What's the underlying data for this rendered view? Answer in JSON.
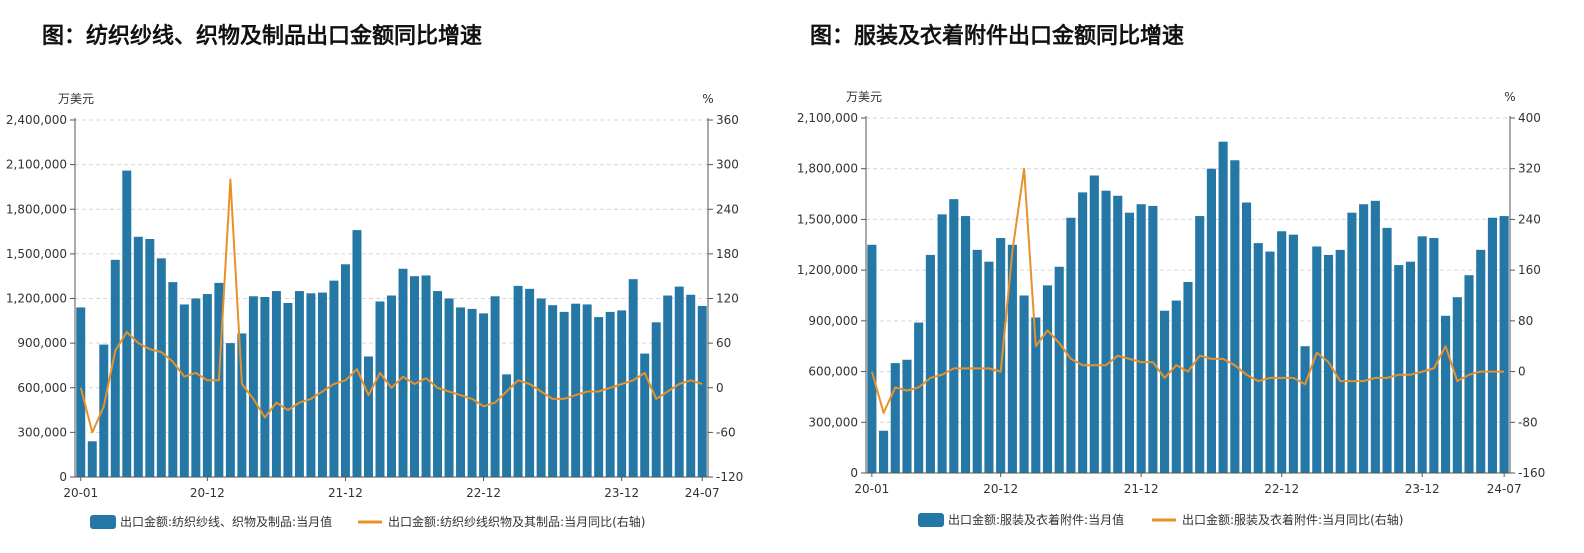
{
  "chart_data": [
    {
      "type": "bar",
      "title": "图：纺织纱线、织物及制品出口金额同比增速",
      "y_unit_left": "万美元",
      "y_unit_right": "%",
      "ylim_left": [
        0,
        2400000
      ],
      "ylim_right": [
        -120,
        360
      ],
      "yticks_left": [
        "0",
        "300,000",
        "600,000",
        "900,000",
        "1,200,000",
        "1,500,000",
        "1,800,000",
        "2,100,000",
        "2,400,000"
      ],
      "yticks_right": [
        "-120",
        "-60",
        "0",
        "60",
        "120",
        "180",
        "240",
        "300",
        "360"
      ],
      "xtick_labels": [
        "20-01",
        "20-12",
        "21-12",
        "22-12",
        "23-12",
        "24-07"
      ],
      "grid": "horizontal-dashed",
      "legend_position": "bottom",
      "categories": [
        "20-01",
        "20-02",
        "20-03",
        "20-04",
        "20-05",
        "20-06",
        "20-07",
        "20-08",
        "20-09",
        "20-10",
        "20-11",
        "20-12",
        "21-01",
        "21-02",
        "21-03",
        "21-04",
        "21-05",
        "21-06",
        "21-07",
        "21-08",
        "21-09",
        "21-10",
        "21-11",
        "21-12",
        "22-01",
        "22-02",
        "22-03",
        "22-04",
        "22-05",
        "22-06",
        "22-07",
        "22-08",
        "22-09",
        "22-10",
        "22-11",
        "22-12",
        "23-01",
        "23-02",
        "23-03",
        "23-04",
        "23-05",
        "23-06",
        "23-07",
        "23-08",
        "23-09",
        "23-10",
        "23-11",
        "23-12",
        "24-01",
        "24-02",
        "24-03",
        "24-04",
        "24-05",
        "24-06",
        "24-07"
      ],
      "series": [
        {
          "name": "出口金额:纺织纱线、织物及制品:当月值",
          "axis": "left",
          "kind": "bar",
          "color": "#2578a5",
          "values": [
            1140000,
            240000,
            890000,
            1460000,
            2060000,
            1615000,
            1600000,
            1470000,
            1310000,
            1160000,
            1200000,
            1230000,
            1305000,
            900000,
            965000,
            1215000,
            1210000,
            1250000,
            1170000,
            1250000,
            1235000,
            1240000,
            1320000,
            1430000,
            1660000,
            810000,
            1180000,
            1220000,
            1400000,
            1350000,
            1355000,
            1250000,
            1200000,
            1140000,
            1130000,
            1100000,
            1215000,
            690000,
            1285000,
            1265000,
            1200000,
            1155000,
            1110000,
            1165000,
            1160000,
            1075000,
            1110000,
            1120000,
            1330000,
            830000,
            1040000,
            1220000,
            1280000,
            1225000,
            1150000
          ]
        },
        {
          "name": "出口金额:纺织纱线织物及其制品:当月同比(右轴)",
          "axis": "right",
          "kind": "line",
          "color": "#e8902a",
          "values": [
            0,
            -60,
            -25,
            50,
            75,
            60,
            52,
            48,
            35,
            15,
            20,
            10,
            10,
            280,
            5,
            -15,
            -40,
            -20,
            -30,
            -20,
            -15,
            -5,
            5,
            10,
            25,
            -10,
            20,
            0,
            15,
            5,
            13,
            0,
            -5,
            -10,
            -15,
            -25,
            -20,
            -5,
            10,
            5,
            -5,
            -15,
            -15,
            -10,
            -5,
            -5,
            0,
            5,
            10,
            20,
            -15,
            -5,
            5,
            10,
            5
          ]
        }
      ]
    },
    {
      "type": "bar",
      "title": "图：服装及衣着附件出口金额同比增速",
      "y_unit_left": "万美元",
      "y_unit_right": "%",
      "ylim_left": [
        0,
        2100000
      ],
      "ylim_right": [
        -160,
        400
      ],
      "yticks_left": [
        "0",
        "300,000",
        "600,000",
        "900,000",
        "1,200,000",
        "1,500,000",
        "1,800,000",
        "2,100,000"
      ],
      "yticks_right": [
        "-160",
        "-80",
        "0",
        "80",
        "160",
        "240",
        "320",
        "400"
      ],
      "xtick_labels": [
        "20-01",
        "20-12",
        "21-12",
        "22-12",
        "23-12",
        "24-07"
      ],
      "grid": "horizontal-dashed",
      "legend_position": "bottom",
      "categories": [
        "20-01",
        "20-02",
        "20-03",
        "20-04",
        "20-05",
        "20-06",
        "20-07",
        "20-08",
        "20-09",
        "20-10",
        "20-11",
        "20-12",
        "21-01",
        "21-02",
        "21-03",
        "21-04",
        "21-05",
        "21-06",
        "21-07",
        "21-08",
        "21-09",
        "21-10",
        "21-11",
        "21-12",
        "22-01",
        "22-02",
        "22-03",
        "22-04",
        "22-05",
        "22-06",
        "22-07",
        "22-08",
        "22-09",
        "22-10",
        "22-11",
        "22-12",
        "23-01",
        "23-02",
        "23-03",
        "23-04",
        "23-05",
        "23-06",
        "23-07",
        "23-08",
        "23-09",
        "23-10",
        "23-11",
        "23-12",
        "24-01",
        "24-02",
        "24-03",
        "24-04",
        "24-05",
        "24-06",
        "24-07"
      ],
      "series": [
        {
          "name": "出口金额:服装及衣着附件:当月值",
          "axis": "left",
          "kind": "bar",
          "color": "#2578a5",
          "values": [
            1350000,
            250000,
            650000,
            670000,
            890000,
            1290000,
            1530000,
            1620000,
            1520000,
            1320000,
            1250000,
            1390000,
            1350000,
            1050000,
            920000,
            1110000,
            1220000,
            1510000,
            1660000,
            1760000,
            1670000,
            1640000,
            1540000,
            1590000,
            1580000,
            960000,
            1020000,
            1130000,
            1520000,
            1800000,
            1960000,
            1850000,
            1600000,
            1360000,
            1310000,
            1430000,
            1410000,
            750000,
            1340000,
            1290000,
            1320000,
            1540000,
            1590000,
            1610000,
            1450000,
            1230000,
            1250000,
            1400000,
            1390000,
            930000,
            1040000,
            1170000,
            1320000,
            1510000,
            1520000
          ]
        },
        {
          "name": "出口金额:服装及衣着附件:当月同比(右轴)",
          "axis": "right",
          "kind": "line",
          "color": "#e8902a",
          "values": [
            0,
            -65,
            -25,
            -30,
            -25,
            -10,
            -5,
            5,
            5,
            5,
            5,
            0,
            190,
            320,
            40,
            65,
            45,
            20,
            10,
            10,
            10,
            25,
            20,
            15,
            15,
            -10,
            10,
            0,
            25,
            20,
            20,
            10,
            -5,
            -15,
            -10,
            -10,
            -10,
            -20,
            30,
            15,
            -15,
            -15,
            -15,
            -10,
            -10,
            -5,
            -5,
            0,
            5,
            40,
            -15,
            -5,
            0,
            0,
            0
          ]
        }
      ]
    }
  ]
}
